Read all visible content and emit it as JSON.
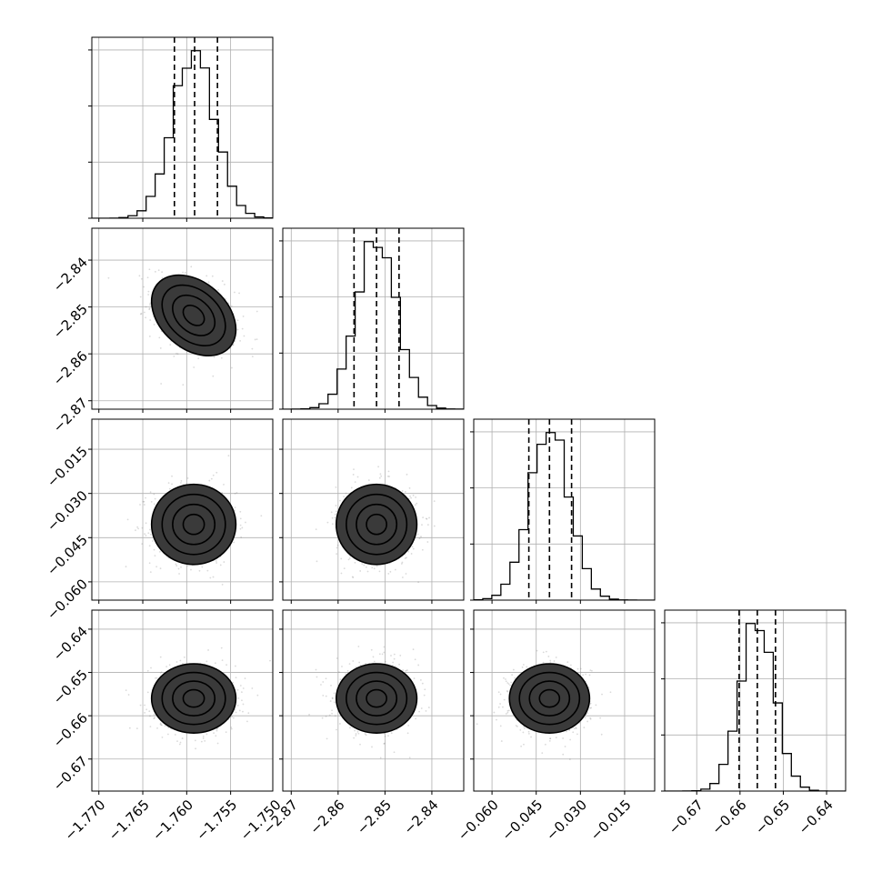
{
  "chart_data": {
    "type": "corner",
    "parameters": [
      {
        "ticks": [
          -1.77,
          -1.765,
          -1.76,
          -1.755,
          -1.75
        ],
        "tick_labels": [
          "−1.770",
          "−1.765",
          "−1.760",
          "−1.755",
          "−1.750"
        ],
        "range": [
          -1.7708,
          -1.7502
        ],
        "mean": -1.7592,
        "sd": 0.0024,
        "quantiles": [
          -1.7614,
          -1.7591,
          -1.7565
        ],
        "show_y_ticks": false
      },
      {
        "ticks": [
          -2.87,
          -2.86,
          -2.85,
          -2.84
        ],
        "tick_labels": [
          "−2.87",
          "−2.86",
          "−2.85",
          "−2.84"
        ],
        "range": [
          -2.8718,
          -2.8332
        ],
        "mean": -2.8518,
        "sd": 0.0043,
        "quantiles": [
          -2.8566,
          -2.8518,
          -2.847
        ],
        "show_y_ticks": true
      },
      {
        "ticks": [
          -0.06,
          -0.045,
          -0.03,
          -0.015
        ],
        "tick_labels": [
          "−0.060",
          "−0.045",
          "−0.030",
          "−0.015"
        ],
        "range": [
          -0.0662,
          -0.0048
        ],
        "mean": -0.0405,
        "sd": 0.0068,
        "quantiles": [
          -0.0475,
          -0.0405,
          -0.033
        ],
        "show_y_ticks": true
      },
      {
        "ticks": [
          -0.67,
          -0.66,
          -0.65,
          -0.64
        ],
        "tick_labels": [
          "−0.67",
          "−0.66",
          "−0.65",
          "−0.64"
        ],
        "range": [
          -0.6774,
          -0.6356
        ],
        "mean": -0.656,
        "sd": 0.004,
        "quantiles": [
          -0.6602,
          -0.656,
          -0.6518
        ],
        "show_y_ticks": true
      }
    ],
    "correlations": [
      [
        1,
        -0.35,
        0.0,
        0.0
      ],
      [
        -0.35,
        1,
        0.0,
        0.0
      ],
      [
        0.0,
        0.0,
        1,
        0.0
      ],
      [
        0.0,
        0.0,
        0.0,
        1
      ]
    ],
    "contour_levels": [
      0.5,
      1.0,
      1.5,
      2.0
    ],
    "histogram_bins": 20,
    "grid": true
  }
}
